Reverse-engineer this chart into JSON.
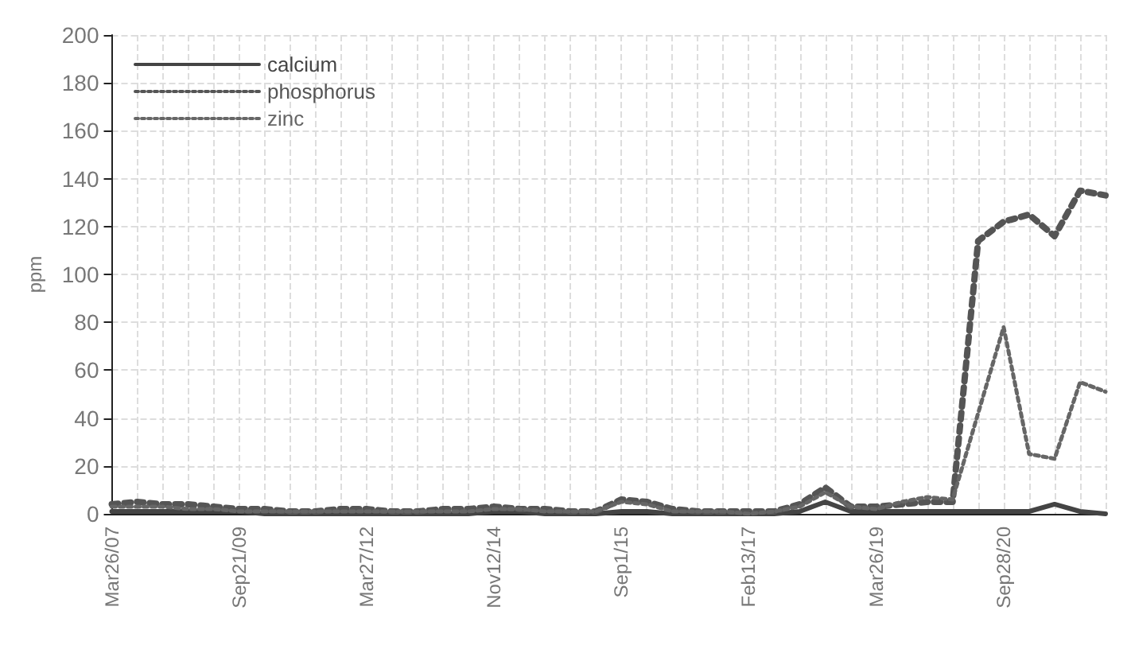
{
  "chart_data": {
    "type": "line",
    "ylabel": "ppm",
    "categories": [
      "Mar26/07",
      null,
      null,
      null,
      null,
      "Sep21/09",
      null,
      null,
      null,
      null,
      "Mar27/12",
      null,
      null,
      null,
      null,
      "Nov12/14",
      null,
      null,
      null,
      null,
      "Sep1/15",
      null,
      null,
      null,
      null,
      "Feb13/17",
      null,
      null,
      null,
      null,
      "Mar26/19",
      null,
      null,
      null,
      null,
      "Sep28/20",
      null,
      null,
      null,
      null
    ],
    "series": [
      {
        "name": "calcium",
        "color": "#444444",
        "line_style": "solid",
        "values": [
          1,
          1,
          1,
          1,
          1,
          1,
          0,
          0,
          0,
          0,
          0,
          0,
          0,
          0,
          0,
          1,
          1,
          0,
          0,
          0,
          1,
          1,
          0,
          0,
          0,
          0,
          0,
          1,
          5,
          1,
          1,
          1,
          1,
          1,
          1,
          1,
          1,
          4,
          1,
          0
        ]
      },
      {
        "name": "phosphorus",
        "color": "#555555",
        "line_style": "dotted",
        "values": [
          4,
          5,
          4,
          4,
          3,
          2,
          2,
          1,
          1,
          2,
          2,
          1,
          1,
          2,
          2,
          3,
          2,
          2,
          1,
          1,
          6,
          5,
          2,
          1,
          1,
          1,
          1,
          4,
          11,
          3,
          3,
          4,
          5,
          5,
          114,
          122,
          125,
          116,
          135,
          133
        ]
      },
      {
        "name": "zinc",
        "color": "#666666",
        "line_style": "dotted",
        "values": [
          3,
          3,
          3,
          2,
          2,
          1,
          1,
          1,
          1,
          1,
          1,
          1,
          1,
          1,
          1,
          2,
          2,
          1,
          1,
          1,
          5,
          4,
          1,
          1,
          1,
          0,
          1,
          3,
          9,
          3,
          2,
          5,
          7,
          6,
          42,
          78,
          25,
          23,
          55,
          51
        ]
      }
    ],
    "ylim": [
      0,
      200
    ],
    "yticks": [
      0,
      20,
      40,
      60,
      80,
      100,
      120,
      140,
      160,
      180,
      200
    ],
    "grid": true,
    "legend": "top left",
    "marker": "none"
  }
}
